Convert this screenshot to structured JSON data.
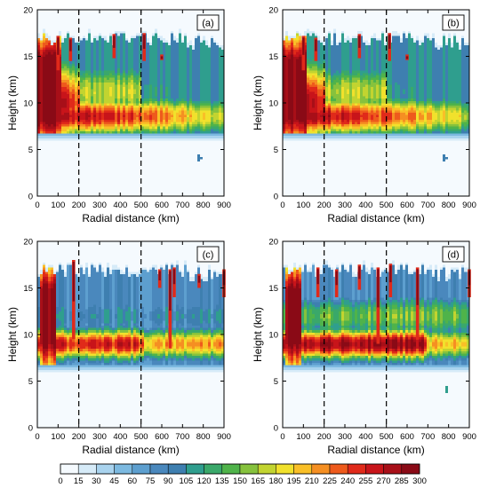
{
  "chart_data": [
    {
      "type": "heatmap",
      "panel_label": "(a)",
      "xlabel": "Radial distance (km)",
      "ylabel": "Height (km)",
      "xlim": [
        0,
        900
      ],
      "ylim": [
        0,
        20
      ],
      "xticks": [
        0,
        100,
        200,
        300,
        400,
        500,
        600,
        700,
        800,
        900
      ],
      "yticks": [
        0,
        5,
        10,
        15,
        20
      ],
      "dashed_lines_x": [
        200,
        500
      ],
      "colorbar": true
    },
    {
      "type": "heatmap",
      "panel_label": "(b)",
      "xlabel": "Radial distance (km)",
      "ylabel": "Height (km)",
      "xlim": [
        0,
        900
      ],
      "ylim": [
        0,
        20
      ],
      "xticks": [
        0,
        100,
        200,
        300,
        400,
        500,
        600,
        700,
        800,
        900
      ],
      "yticks": [
        0,
        5,
        10,
        15,
        20
      ],
      "dashed_lines_x": [
        200,
        500
      ],
      "colorbar": true
    },
    {
      "type": "heatmap",
      "panel_label": "(c)",
      "xlabel": "Radial distance (km)",
      "ylabel": "Height (km)",
      "xlim": [
        0,
        900
      ],
      "ylim": [
        0,
        20
      ],
      "xticks": [
        0,
        100,
        200,
        300,
        400,
        500,
        600,
        700,
        800,
        900
      ],
      "yticks": [
        0,
        5,
        10,
        15,
        20
      ],
      "dashed_lines_x": [
        200,
        500
      ],
      "colorbar": true
    },
    {
      "type": "heatmap",
      "panel_label": "(d)",
      "xlabel": "Radial distance (km)",
      "ylabel": "Height (km)",
      "xlim": [
        0,
        900
      ],
      "ylim": [
        0,
        20
      ],
      "xticks": [
        0,
        100,
        200,
        300,
        400,
        500,
        600,
        700,
        800,
        900
      ],
      "yticks": [
        0,
        5,
        10,
        15,
        20
      ],
      "dashed_lines_x": [
        200,
        500
      ],
      "colorbar": true
    }
  ],
  "colorbar": {
    "ticks": [
      0,
      15,
      30,
      45,
      60,
      75,
      90,
      105,
      120,
      135,
      150,
      165,
      180,
      195,
      210,
      225,
      240,
      255,
      270,
      285,
      300
    ],
    "colors": [
      "#f5fafe",
      "#d6ebf8",
      "#a9d3ee",
      "#7cb9e0",
      "#5d9fcf",
      "#4a88bd",
      "#3e7fb0",
      "#2f9e8e",
      "#3aa86a",
      "#4fb34a",
      "#86c23d",
      "#c2d430",
      "#f1e12c",
      "#f9bf27",
      "#f58f22",
      "#ee5a1c",
      "#e02a1a",
      "#c8141a",
      "#a80f18",
      "#8a0a16"
    ]
  }
}
